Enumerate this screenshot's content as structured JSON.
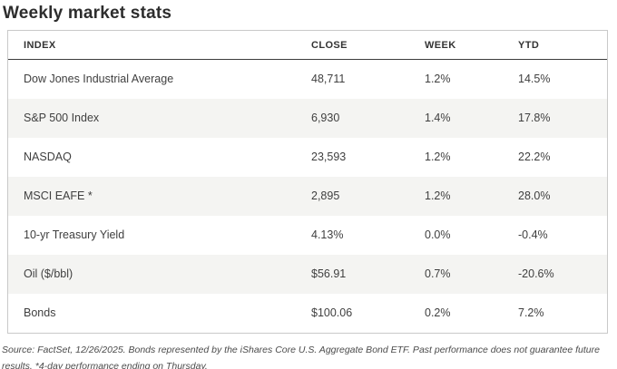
{
  "title": "Weekly market stats",
  "table": {
    "columns": [
      "INDEX",
      "CLOSE",
      "WEEK",
      "YTD"
    ],
    "rows": [
      {
        "index": "Dow Jones Industrial Average",
        "close": "48,711",
        "week": "1.2%",
        "ytd": "14.5%"
      },
      {
        "index": "S&P 500 Index",
        "close": "6,930",
        "week": "1.4%",
        "ytd": "17.8%"
      },
      {
        "index": "NASDAQ",
        "close": "23,593",
        "week": "1.2%",
        "ytd": "22.2%"
      },
      {
        "index": "MSCI EAFE *",
        "close": "2,895",
        "week": "1.2%",
        "ytd": "28.0%"
      },
      {
        "index": "10-yr Treasury Yield",
        "close": "4.13%",
        "week": "0.0%",
        "ytd": "-0.4%"
      },
      {
        "index": "Oil ($/bbl)",
        "close": "$56.91",
        "week": "0.7%",
        "ytd": "-20.6%"
      },
      {
        "index": "Bonds",
        "close": "$100.06",
        "week": "0.2%",
        "ytd": "7.2%"
      }
    ]
  },
  "footnote": "Source: FactSet, 12/26/2025. Bonds represented by the iShares Core U.S. Aggregate Bond ETF. Past performance does not guarantee future results. *4-day performance ending on Thursday.",
  "colors": {
    "title_text": "#2d2d2d",
    "header_text": "#333333",
    "body_text": "#3f3f3f",
    "row_alt_background": "#f4f4f2",
    "table_border": "#c9c9c9",
    "header_underline": "#3c3c3c",
    "footnote_text": "#4b4b4b"
  }
}
